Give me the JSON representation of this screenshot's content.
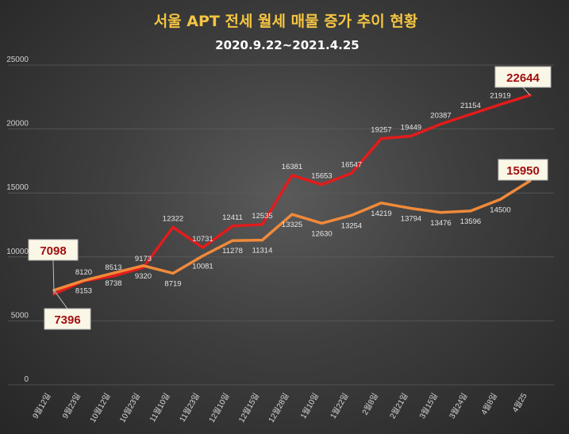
{
  "chart_data": {
    "type": "line",
    "title": "서울 APT 전세 월세 매물 증가 추이 현황",
    "subtitle": "2020.9.22~2021.4.25",
    "categories": [
      "9월12일",
      "9월23일",
      "10월12일",
      "10월23일",
      "11월10일",
      "11월23일",
      "12월10일",
      "12월15일",
      "12월28일",
      "1월10일",
      "1월22일",
      "2월8일",
      "2월21일",
      "3월15일",
      "3월24일",
      "4월8일",
      "4월25"
    ],
    "ylim": [
      0,
      25000
    ],
    "yticks": [
      "0",
      "5000",
      "10000",
      "15000",
      "20000",
      "25000"
    ],
    "grid": true,
    "series": [
      {
        "color": "#e31b1b",
        "values": [
          7098,
          8120,
          8513,
          9173,
          12322,
          10731,
          12411,
          12535,
          16381,
          15653,
          16547,
          19257,
          19449,
          20387,
          21154,
          21919,
          22644
        ],
        "labels": [
          "7098",
          "8120",
          "8513",
          "9173",
          "12322",
          "10731",
          "12411",
          "12535",
          "16381",
          "15653",
          "16547",
          "19257",
          "19449",
          "20387",
          "21154",
          "21919",
          "22644"
        ]
      },
      {
        "color": "#f08a3a",
        "values": [
          7396,
          8153,
          8738,
          9320,
          8719,
          10081,
          11278,
          11314,
          13325,
          12630,
          13254,
          14219,
          13794,
          13476,
          13596,
          14500,
          15950
        ],
        "labels": [
          "7396",
          "8153",
          "8738",
          "9320",
          "8719",
          "10081",
          "11278",
          "11314",
          "13325",
          "12630",
          "13254",
          "14219",
          "13794",
          "13476",
          "13596",
          "14500",
          "15950"
        ]
      }
    ],
    "callouts": [
      {
        "text": "7098"
      },
      {
        "text": "7396"
      },
      {
        "text": "22644"
      },
      {
        "text": "15950"
      }
    ]
  }
}
